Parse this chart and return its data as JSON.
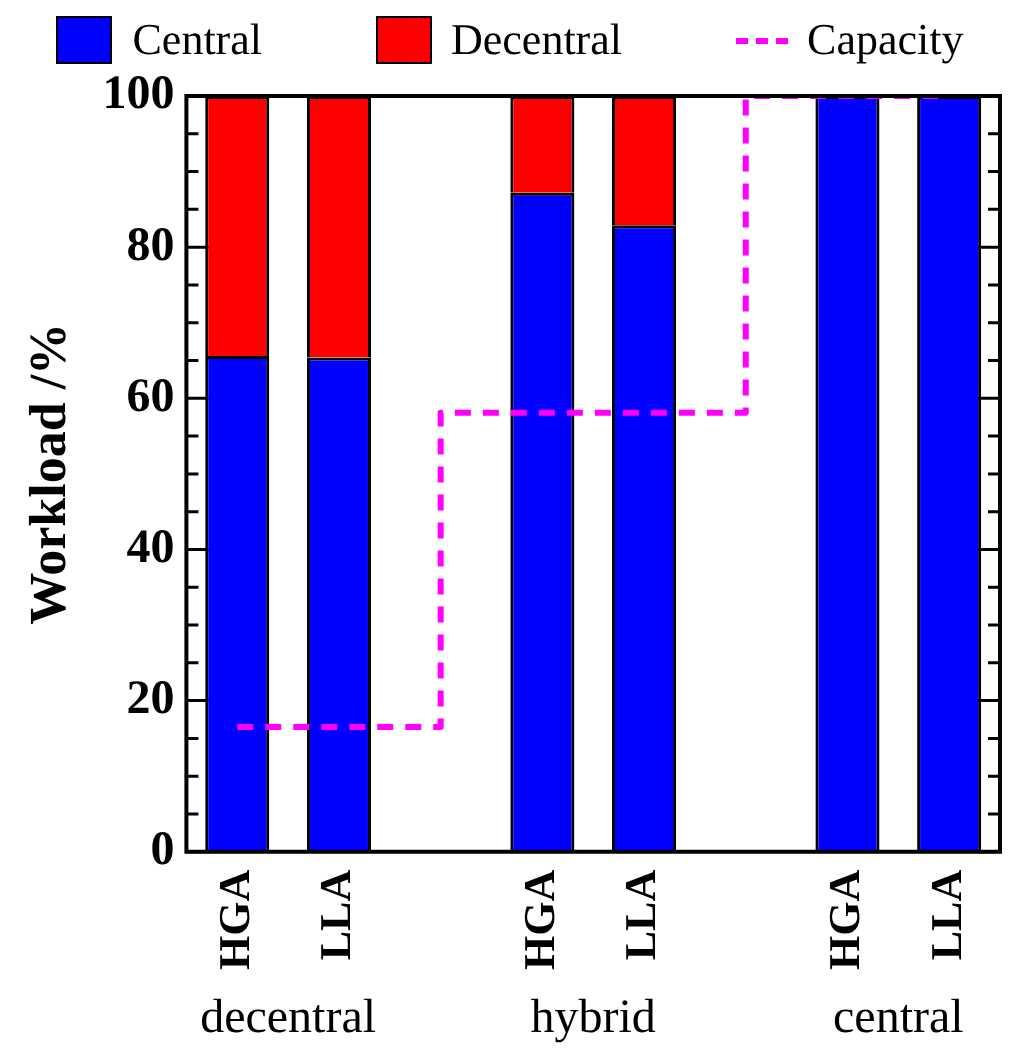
{
  "chart_data": {
    "type": "bar",
    "stacked": true,
    "ylabel": "Workload /%",
    "categories": [
      "HGA",
      "LLA",
      null,
      "HGA",
      "LLA",
      null,
      "HGA",
      "LLA"
    ],
    "series": [
      {
        "name": "Central",
        "color": "#0000ff",
        "values": [
          65.6,
          65.4,
          null,
          87.2,
          82.9,
          null,
          100,
          100
        ]
      },
      {
        "name": "Decentral",
        "color": "#ff0000",
        "values": [
          34.4,
          34.6,
          null,
          12.8,
          17.1,
          null,
          0,
          0
        ]
      },
      {
        "name": "Capacity",
        "type": "step",
        "color": "#ff00ff",
        "line_style": "dashed",
        "values": [
          16.5,
          16.5,
          null,
          58.1,
          58.1,
          null,
          100,
          100
        ]
      }
    ],
    "annotations": [
      "decentral",
      "hybrid",
      "central"
    ],
    "ylim": [
      0,
      100
    ],
    "yticks": [
      0,
      {
        "value": 5,
        "label": null
      },
      {
        "value": 10,
        "label": null
      },
      {
        "value": 15,
        "label": null
      },
      20,
      {
        "value": 25,
        "label": null
      },
      {
        "value": 30,
        "label": null
      },
      {
        "value": 35,
        "label": null
      },
      40,
      {
        "value": 45,
        "label": null
      },
      {
        "value": 50,
        "label": null
      },
      {
        "value": 55,
        "label": null
      },
      60,
      {
        "value": 65,
        "label": null
      },
      {
        "value": 70,
        "label": null
      },
      {
        "value": 75,
        "label": null
      },
      80,
      {
        "value": 85,
        "label": null
      },
      {
        "value": 90,
        "label": null
      },
      {
        "value": 95,
        "label": null
      },
      100
    ],
    "grid": false,
    "legend": "top"
  }
}
